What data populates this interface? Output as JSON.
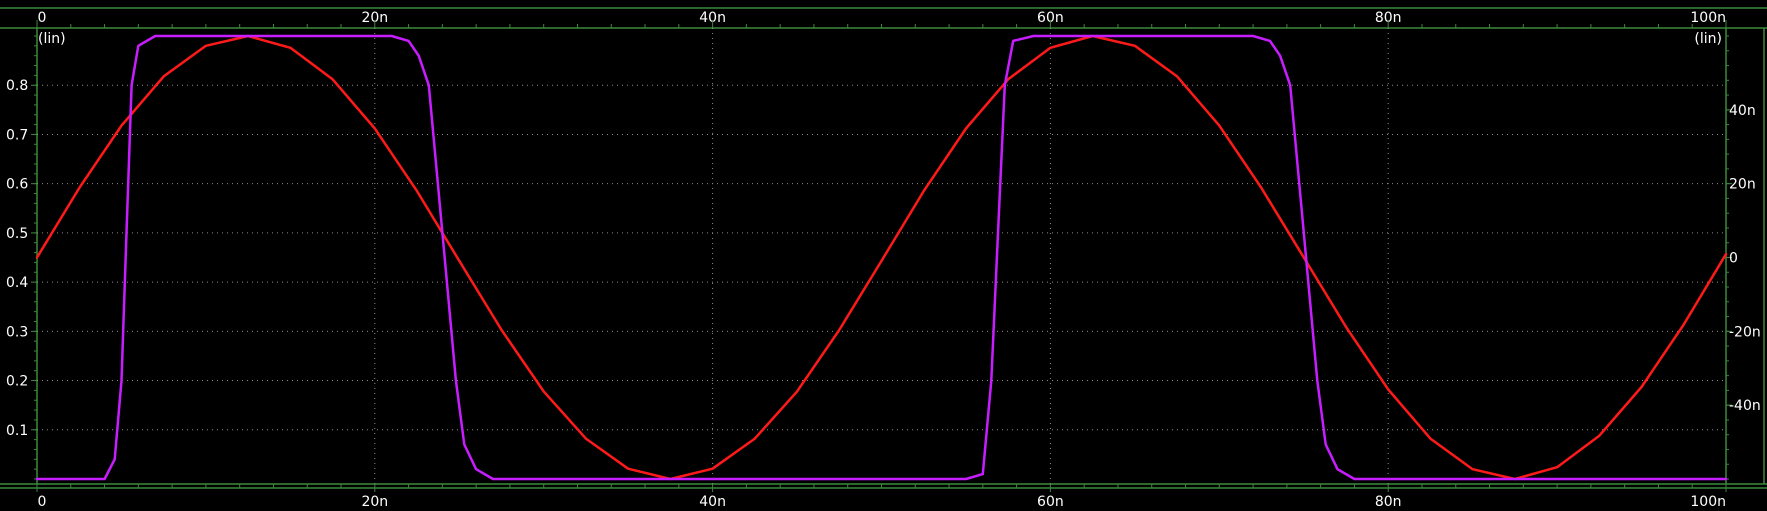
{
  "chart_data": {
    "type": "line",
    "title": "",
    "xlabel": "",
    "ylabel": "",
    "x_range": [
      0,
      100
    ],
    "x_ticks": [
      {
        "value": 0,
        "label": "0"
      },
      {
        "value": 20,
        "label": "20n"
      },
      {
        "value": 40,
        "label": "40n"
      },
      {
        "value": 60,
        "label": "60n"
      },
      {
        "value": 80,
        "label": "80n"
      },
      {
        "value": 100,
        "label": "100n"
      }
    ],
    "left_axis": {
      "scale_label": "(lin)",
      "range": [
        0,
        0.9
      ],
      "ticks": [
        {
          "value": 0.1,
          "label": "0.1"
        },
        {
          "value": 0.2,
          "label": "0.2"
        },
        {
          "value": 0.3,
          "label": "0.3"
        },
        {
          "value": 0.4,
          "label": "0.4"
        },
        {
          "value": 0.5,
          "label": "0.5"
        },
        {
          "value": 0.6,
          "label": "0.6"
        },
        {
          "value": 0.7,
          "label": "0.7"
        },
        {
          "value": 0.8,
          "label": "0.8"
        }
      ]
    },
    "right_axis": {
      "scale_label": "(lin)",
      "range": [
        -60,
        60
      ],
      "ticks": [
        {
          "value": 40,
          "label": "40n"
        },
        {
          "value": 20,
          "label": "20n"
        },
        {
          "value": 0,
          "label": "0"
        },
        {
          "value": -20,
          "label": "-20n"
        },
        {
          "value": -40,
          "label": "-40n"
        }
      ]
    },
    "grid": true,
    "series": [
      {
        "color": "#ff1a1a",
        "axis": "left",
        "x": [
          0,
          2.5,
          5,
          7.5,
          10,
          12.5,
          15,
          17.5,
          20,
          22.5,
          25,
          27.5,
          30,
          32.5,
          35,
          37.5,
          40,
          42.5,
          45,
          47.5,
          50,
          52.5,
          55,
          57.5,
          60,
          62.5,
          65,
          67.5,
          70,
          72.5,
          75,
          77.5,
          80,
          82.5,
          85,
          87.5,
          90,
          92.5,
          95,
          97.5,
          100
        ],
        "values": [
          0.45,
          0.591,
          0.718,
          0.818,
          0.88,
          0.9,
          0.876,
          0.812,
          0.712,
          0.585,
          0.443,
          0.303,
          0.178,
          0.082,
          0.021,
          0,
          0.021,
          0.082,
          0.178,
          0.303,
          0.443,
          0.585,
          0.712,
          0.812,
          0.876,
          0.9,
          0.88,
          0.818,
          0.718,
          0.591,
          0.45,
          0.309,
          0.182,
          0.082,
          0.02,
          0,
          0.024,
          0.088,
          0.187,
          0.314,
          0.457
        ]
      },
      {
        "color": "#c81eff",
        "axis": "left",
        "x": [
          0,
          4,
          4.6,
          5,
          5.3,
          5.6,
          6,
          7,
          21,
          22,
          22.6,
          23.2,
          24,
          24.8,
          25.3,
          26,
          27,
          55,
          56,
          56.5,
          56.9,
          57.3,
          57.8,
          59,
          72,
          73,
          73.6,
          74.2,
          75,
          75.8,
          76.3,
          77,
          78,
          100
        ],
        "values": [
          0,
          0,
          0.04,
          0.2,
          0.5,
          0.8,
          0.88,
          0.9,
          0.9,
          0.89,
          0.86,
          0.8,
          0.5,
          0.2,
          0.07,
          0.02,
          0,
          0,
          0.01,
          0.2,
          0.5,
          0.8,
          0.89,
          0.9,
          0.9,
          0.89,
          0.86,
          0.8,
          0.5,
          0.2,
          0.07,
          0.02,
          0,
          0
        ]
      }
    ]
  }
}
